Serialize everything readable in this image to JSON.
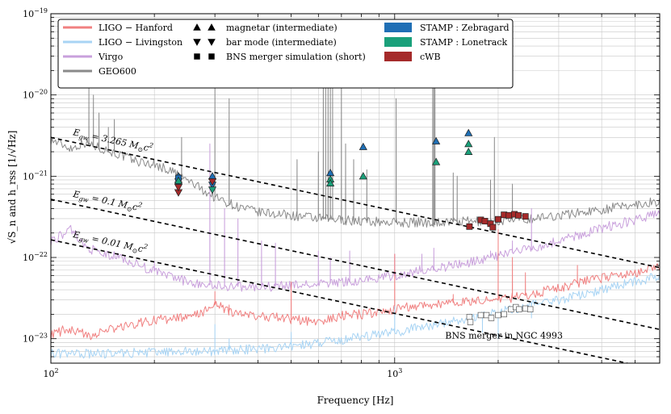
{
  "chart_data": {
    "type": "line",
    "xscale": "log",
    "yscale": "log",
    "xlim": [
      100,
      5900
    ],
    "ylim": [
      5e-24,
      1e-19
    ],
    "xlabel": "Frequency [Hz]",
    "ylabel": "√S_n  and  h_rss [1/√Hz]",
    "x_tick_labels": [
      {
        "value": 100,
        "base": "10",
        "exp": "2"
      },
      {
        "value": 1000,
        "base": "10",
        "exp": "3"
      }
    ],
    "y_tick_labels": [
      {
        "value": 1e-19,
        "base": "10",
        "exp": "−19"
      },
      {
        "value": 1e-20,
        "base": "10",
        "exp": "−20"
      },
      {
        "value": 1e-21,
        "base": "10",
        "exp": "−21"
      },
      {
        "value": 1e-22,
        "base": "10",
        "exp": "−22"
      },
      {
        "value": 1e-23,
        "base": "10",
        "exp": "−23"
      }
    ],
    "grid": true,
    "colors": {
      "hanford": "#f08080",
      "livingston": "#a8d4f4",
      "virgo": "#c9a0dc",
      "geo600": "#8a8a8a",
      "zebragard": "#1f6fb5",
      "lonetrack": "#1aa07a",
      "cwb": "#a52a2a"
    },
    "series": [
      {
        "name": "GEO600",
        "key": "geo600",
        "spikes": [
          [
            129,
            1.2e-20
          ],
          [
            133,
            1e-20
          ],
          [
            138,
            6e-21
          ],
          [
            147,
            4e-21
          ],
          [
            153,
            5e-21
          ],
          [
            240,
            3e-21
          ],
          [
            300,
            1.5e-20
          ],
          [
            330,
            9e-21
          ],
          [
            520,
            1.6e-21
          ],
          [
            600,
            2e-21
          ],
          [
            620,
            5e-20
          ],
          [
            630,
            5e-20
          ],
          [
            640,
            5e-20
          ],
          [
            650,
            5e-20
          ],
          [
            660,
            5e-20
          ],
          [
            700,
            5e-20
          ],
          [
            720,
            2.5e-21
          ],
          [
            760,
            1.6e-21
          ],
          [
            830,
            1.2e-21
          ],
          [
            1010,
            9e-21
          ],
          [
            1290,
            1.5e-20
          ],
          [
            1300,
            2e-20
          ],
          [
            1310,
            1.5e-20
          ],
          [
            1480,
            1.1e-21
          ],
          [
            1520,
            1e-21
          ],
          [
            1900,
            9e-22
          ],
          [
            1950,
            3e-21
          ],
          [
            2200,
            8e-22
          ]
        ],
        "points": [
          [
            100,
            2.8e-21
          ],
          [
            115,
            2.2e-21
          ],
          [
            125,
            2.6e-21
          ],
          [
            150,
            2e-21
          ],
          [
            180,
            1.5e-21
          ],
          [
            200,
            1.4e-21
          ],
          [
            230,
            1.1e-21
          ],
          [
            260,
            8e-22
          ],
          [
            300,
            5.5e-22
          ],
          [
            350,
            4.2e-22
          ],
          [
            400,
            3.6e-22
          ],
          [
            500,
            3.3e-22
          ],
          [
            600,
            3e-22
          ],
          [
            700,
            2.9e-22
          ],
          [
            800,
            2.8e-22
          ],
          [
            1000,
            2.7e-22
          ],
          [
            1300,
            2.7e-22
          ],
          [
            1500,
            2.75e-22
          ],
          [
            2000,
            2.8e-22
          ],
          [
            2500,
            3e-22
          ],
          [
            3000,
            3.3e-22
          ],
          [
            3500,
            3.6e-22
          ],
          [
            4000,
            3.9e-22
          ],
          [
            4500,
            4.2e-22
          ],
          [
            5000,
            4.5e-22
          ],
          [
            5900,
            4.9e-22
          ]
        ]
      },
      {
        "name": "Virgo",
        "key": "virgo",
        "spikes": [
          [
            200,
            9e-23
          ],
          [
            290,
            2.5e-21
          ],
          [
            320,
            4e-22
          ],
          [
            350,
            3e-22
          ],
          [
            410,
            1.6e-22
          ],
          [
            450,
            1.5e-22
          ],
          [
            600,
            1.2e-22
          ],
          [
            650,
            1e-22
          ],
          [
            740,
            1.2e-22
          ],
          [
            1000,
            1.1e-22
          ],
          [
            1200,
            1.1e-22
          ],
          [
            1300,
            1.3e-22
          ],
          [
            1900,
            1.2e-22
          ],
          [
            2200,
            1.6e-22
          ],
          [
            2500,
            4e-22
          ]
        ],
        "points": [
          [
            100,
            1.6e-22
          ],
          [
            115,
            2.2e-22
          ],
          [
            125,
            1.4e-22
          ],
          [
            140,
            1.1e-22
          ],
          [
            160,
            1e-22
          ],
          [
            180,
            8e-23
          ],
          [
            200,
            6.8e-23
          ],
          [
            250,
            5e-23
          ],
          [
            300,
            4.5e-23
          ],
          [
            400,
            4.3e-23
          ],
          [
            500,
            4.5e-23
          ],
          [
            600,
            4.7e-23
          ],
          [
            800,
            5.2e-23
          ],
          [
            1000,
            6e-23
          ],
          [
            1200,
            7e-23
          ],
          [
            1500,
            8e-23
          ],
          [
            1800,
            9.5e-23
          ],
          [
            2000,
            1.05e-22
          ],
          [
            2500,
            1.3e-22
          ],
          [
            3000,
            1.6e-22
          ],
          [
            3500,
            1.9e-22
          ],
          [
            4000,
            2.3e-22
          ],
          [
            5000,
            2.9e-22
          ],
          [
            5900,
            3.4e-22
          ]
        ]
      },
      {
        "name": "LIGO − Hanford",
        "key": "hanford",
        "spikes": [
          [
            300,
            3.8e-23
          ],
          [
            330,
            2.6e-23
          ],
          [
            500,
            5e-23
          ],
          [
            1000,
            1.1e-22
          ],
          [
            1480,
            3.5e-23
          ],
          [
            2000,
            2.2e-22
          ],
          [
            2200,
            1e-22
          ],
          [
            2400,
            6.5e-23
          ],
          [
            3400,
            8e-23
          ]
        ],
        "points": [
          [
            100,
            1.1e-23
          ],
          [
            110,
            1.3e-23
          ],
          [
            130,
            1.1e-23
          ],
          [
            160,
            1.4e-23
          ],
          [
            200,
            1.7e-23
          ],
          [
            250,
            1.8e-23
          ],
          [
            280,
            2.2e-23
          ],
          [
            300,
            2.6e-23
          ],
          [
            350,
            2e-23
          ],
          [
            400,
            1.9e-23
          ],
          [
            500,
            1.75e-23
          ],
          [
            600,
            1.6e-23
          ],
          [
            700,
            1.9e-23
          ],
          [
            800,
            2e-23
          ],
          [
            900,
            2.1e-23
          ],
          [
            1000,
            2.3e-23
          ],
          [
            1200,
            2.6e-23
          ],
          [
            1500,
            2.8e-23
          ],
          [
            2000,
            3e-23
          ],
          [
            2500,
            3.5e-23
          ],
          [
            3000,
            4.2e-23
          ],
          [
            3500,
            5e-23
          ],
          [
            4000,
            5.5e-23
          ],
          [
            5000,
            6.5e-23
          ],
          [
            5900,
            7.5e-23
          ]
        ]
      },
      {
        "name": "LIGO − Livingston",
        "key": "livingston",
        "spikes": [
          [
            300,
            1.5e-23
          ],
          [
            330,
            1e-23
          ],
          [
            500,
            1.2e-23
          ],
          [
            1000,
            2.5e-23
          ],
          [
            1450,
            1.5e-23
          ],
          [
            1800,
            1.2e-23
          ],
          [
            2000,
            1e-23
          ],
          [
            2500,
            1.8e-23
          ]
        ],
        "points": [
          [
            100,
            6.5e-24
          ],
          [
            150,
            6.6e-24
          ],
          [
            200,
            6.8e-24
          ],
          [
            300,
            7e-24
          ],
          [
            400,
            7.5e-24
          ],
          [
            500,
            8e-24
          ],
          [
            600,
            8.8e-24
          ],
          [
            700,
            9.5e-24
          ],
          [
            800,
            1.05e-23
          ],
          [
            1000,
            1.2e-23
          ],
          [
            1200,
            1.4e-23
          ],
          [
            1500,
            1.65e-23
          ],
          [
            2000,
            2.1e-23
          ],
          [
            2500,
            2.6e-23
          ],
          [
            3000,
            3e-23
          ],
          [
            3500,
            3.5e-23
          ],
          [
            4000,
            4e-23
          ],
          [
            5000,
            5e-23
          ],
          [
            5900,
            5.8e-23
          ]
        ]
      }
    ],
    "energy_lines": [
      {
        "label": "E_gw = 3.265 M⊙c²",
        "sub": "gw",
        "rhs": "= 3.265 M",
        "tail": "c",
        "sup": "2",
        "points": [
          [
            100,
            3e-21
          ],
          [
            5900,
            7.5e-23
          ]
        ]
      },
      {
        "label": "E_gw = 0.1 M⊙c²",
        "sub": "gw",
        "rhs": "= 0.1 M",
        "tail": "c",
        "sup": "2",
        "points": [
          [
            100,
            5.2e-22
          ],
          [
            5900,
            1.3e-23
          ]
        ]
      },
      {
        "label": "E_gw = 0.01 M⊙c²",
        "sub": "gw",
        "rhs": "= 0.01 M",
        "tail": "c",
        "sup": "2",
        "points": [
          [
            100,
            1.65e-22
          ],
          [
            5900,
            4.1e-24
          ]
        ]
      }
    ],
    "markers": {
      "zebragard": [
        {
          "shape": "up",
          "x": 235,
          "y": 1e-21
        },
        {
          "shape": "down",
          "x": 235,
          "y": 7.8e-22
        },
        {
          "shape": "square",
          "x": 235,
          "y": 9.5e-22
        },
        {
          "shape": "up",
          "x": 295,
          "y": 1e-21
        },
        {
          "shape": "down",
          "x": 295,
          "y": 7.8e-22
        },
        {
          "shape": "up",
          "x": 650,
          "y": 1.1e-21
        },
        {
          "shape": "up",
          "x": 810,
          "y": 2.3e-21
        },
        {
          "shape": "up",
          "x": 1320,
          "y": 2.7e-21
        },
        {
          "shape": "up",
          "x": 1640,
          "y": 3.4e-21
        }
      ],
      "lonetrack": [
        {
          "shape": "up",
          "x": 235,
          "y": 8.8e-22
        },
        {
          "shape": "down",
          "x": 295,
          "y": 6.8e-22
        },
        {
          "shape": "up",
          "x": 650,
          "y": 9.2e-22
        },
        {
          "shape": "up",
          "x": 650,
          "y": 8.2e-22
        },
        {
          "shape": "up",
          "x": 810,
          "y": 1e-21
        },
        {
          "shape": "up",
          "x": 1320,
          "y": 1.5e-21
        },
        {
          "shape": "up",
          "x": 1640,
          "y": 2e-21
        },
        {
          "shape": "up",
          "x": 1640,
          "y": 2.5e-21
        }
      ],
      "cwb": [
        {
          "shape": "down",
          "x": 235,
          "y": 6.3e-22
        },
        {
          "shape": "down",
          "x": 235,
          "y": 7.3e-22
        },
        {
          "shape": "down",
          "x": 295,
          "y": 8.6e-22
        },
        {
          "shape": "square",
          "x": 1650,
          "y": 2.4e-22
        },
        {
          "shape": "square",
          "x": 1780,
          "y": 2.9e-22
        },
        {
          "shape": "square",
          "x": 1830,
          "y": 2.8e-22
        },
        {
          "shape": "square",
          "x": 1900,
          "y": 2.6e-22
        },
        {
          "shape": "square",
          "x": 1930,
          "y": 2.35e-22
        },
        {
          "shape": "square",
          "x": 2000,
          "y": 2.95e-22
        },
        {
          "shape": "square",
          "x": 2080,
          "y": 3.35e-22
        },
        {
          "shape": "square",
          "x": 2150,
          "y": 3.3e-22
        },
        {
          "shape": "square",
          "x": 2230,
          "y": 3.4e-22
        },
        {
          "shape": "square",
          "x": 2290,
          "y": 3.3e-22
        },
        {
          "shape": "square",
          "x": 2400,
          "y": 3.2e-22
        }
      ],
      "bns_open": [
        {
          "x": 1650,
          "y": 1.85e-23
        },
        {
          "x": 1660,
          "y": 1.6e-23
        },
        {
          "x": 1780,
          "y": 1.95e-23
        },
        {
          "x": 1850,
          "y": 1.95e-23
        },
        {
          "x": 1910,
          "y": 1.8e-23
        },
        {
          "x": 2000,
          "y": 1.95e-23
        },
        {
          "x": 2080,
          "y": 2e-23
        },
        {
          "x": 2180,
          "y": 2.3e-23
        },
        {
          "x": 2250,
          "y": 2.45e-23
        },
        {
          "x": 2300,
          "y": 2.3e-23
        },
        {
          "x": 2400,
          "y": 2.35e-23
        },
        {
          "x": 2480,
          "y": 2.3e-23
        }
      ]
    },
    "annotations": [
      {
        "text": "BNS merger in NGC 4993",
        "x": 2080,
        "y": 1e-23
      }
    ],
    "legend": {
      "placement": "top",
      "columns": [
        [
          {
            "kind": "line",
            "key": "hanford",
            "label": "LIGO − Hanford"
          },
          {
            "kind": "line",
            "key": "livingston",
            "label": "LIGO − Livingston"
          },
          {
            "kind": "line",
            "key": "virgo",
            "label": "Virgo"
          },
          {
            "kind": "line",
            "key": "geo600",
            "label": "GEO600"
          }
        ],
        [
          {
            "kind": "marker",
            "shape": "up",
            "label": "magnetar (intermediate)"
          },
          {
            "kind": "marker",
            "shape": "down",
            "label": "bar mode (intermediate)"
          },
          {
            "kind": "marker",
            "shape": "square",
            "label": "BNS merger simulation (short)"
          }
        ],
        [
          {
            "kind": "patch",
            "key": "zebragard",
            "label": "STAMP : Zebragard"
          },
          {
            "kind": "patch",
            "key": "lonetrack",
            "label": "STAMP : Lonetrack"
          },
          {
            "kind": "patch",
            "key": "cwb",
            "label": "cWB"
          }
        ]
      ]
    }
  }
}
